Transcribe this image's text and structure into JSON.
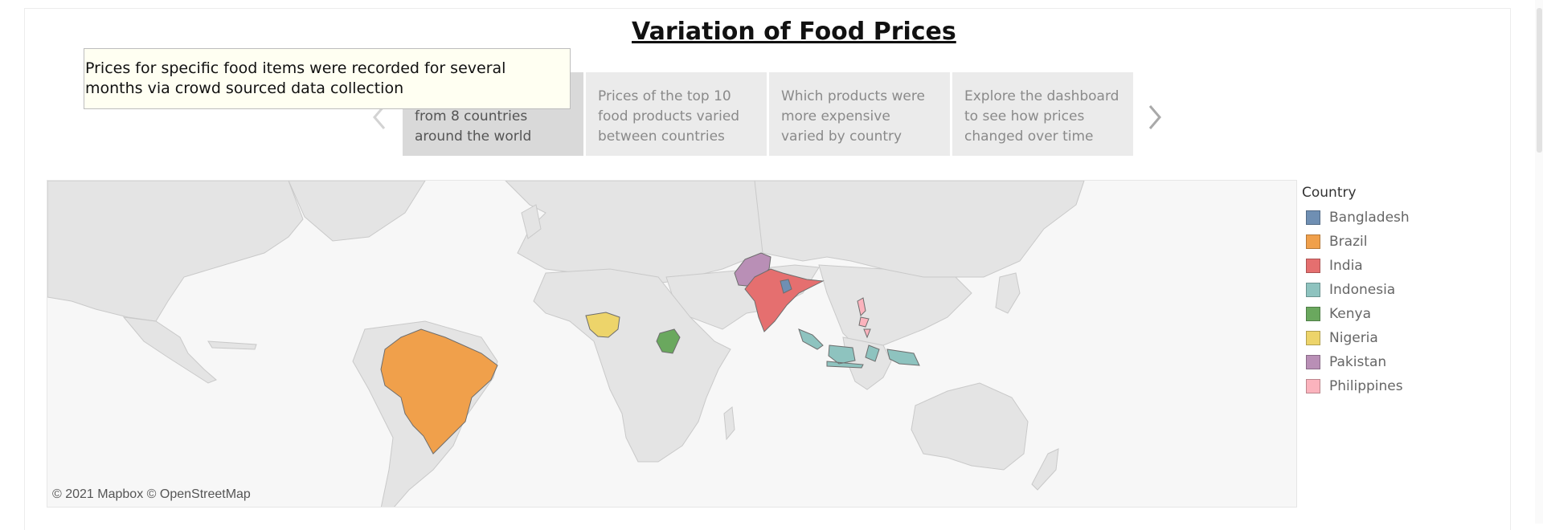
{
  "title": "Variation of Food Prices",
  "story_points": [
    {
      "text": "Data was collected from 8 countries around the world",
      "active": true
    },
    {
      "text": "Prices of the top 10 food products varied between countries",
      "active": false
    },
    {
      "text": "Which products were more expensive varied by country",
      "active": false
    },
    {
      "text": "Explore the dashboard to see how prices changed over time",
      "active": false
    }
  ],
  "navigation": {
    "prev_icon": "chevron-left-icon",
    "next_icon": "chevron-right-icon"
  },
  "tooltip": {
    "text": "Prices for specific food items were recorded for several months via crowd sourced data collection"
  },
  "map": {
    "attribution": "© 2021 Mapbox  © OpenStreetMap"
  },
  "legend": {
    "title": "Country",
    "items": [
      {
        "label": "Bangladesh",
        "color": "#6f8fb3"
      },
      {
        "label": "Brazil",
        "color": "#f0a04b"
      },
      {
        "label": "India",
        "color": "#e56f6f"
      },
      {
        "label": "Indonesia",
        "color": "#8ec3bf"
      },
      {
        "label": "Kenya",
        "color": "#6aa85e"
      },
      {
        "label": "Nigeria",
        "color": "#edd46a"
      },
      {
        "label": "Pakistan",
        "color": "#b98fb6"
      },
      {
        "label": "Philippines",
        "color": "#fbb3bd"
      }
    ]
  }
}
